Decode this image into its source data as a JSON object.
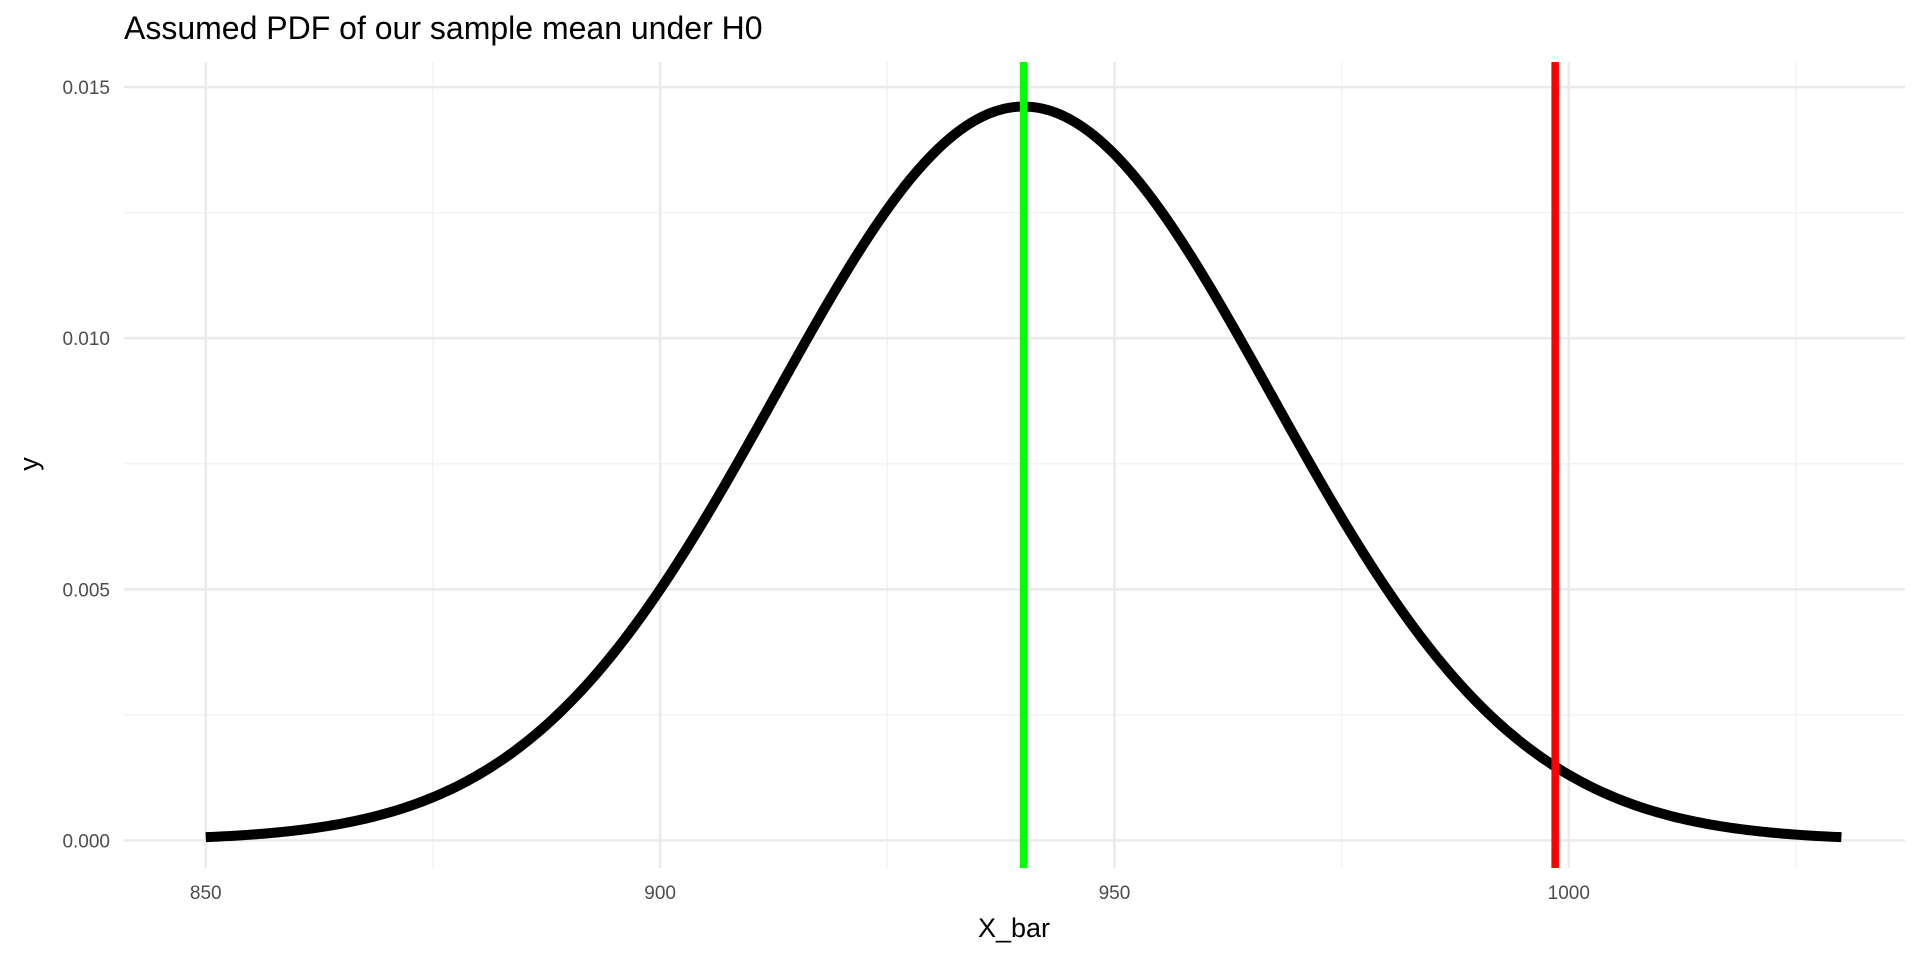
{
  "chart_data": {
    "type": "line",
    "title": "Assumed PDF of our sample mean under H0",
    "xlabel": "X_bar",
    "ylabel": "y",
    "xlim": [
      841,
      1037
    ],
    "ylim": [
      -0.00055,
      0.0155
    ],
    "x_ticks": [
      850,
      900,
      950,
      1000
    ],
    "x_tick_labels": [
      "850",
      "900",
      "950",
      "1000"
    ],
    "x_minor_ticks": [
      875,
      925,
      975,
      1025
    ],
    "y_ticks": [
      0,
      0.005,
      0.01,
      0.015
    ],
    "y_tick_labels": [
      "0.000",
      "0.005",
      "0.010",
      "0.015"
    ],
    "y_minor_ticks": [
      0.0025,
      0.0075,
      0.0125
    ],
    "grid": true,
    "legend": "none",
    "curve": {
      "distribution": "normal",
      "mean": 940,
      "sd": 27.3,
      "x_range": [
        850,
        1030
      ],
      "color": "#000000"
    },
    "vlines": [
      {
        "x": 940,
        "color": "#00ff00"
      },
      {
        "x": 998.5,
        "color": "#ff0000"
      }
    ]
  }
}
